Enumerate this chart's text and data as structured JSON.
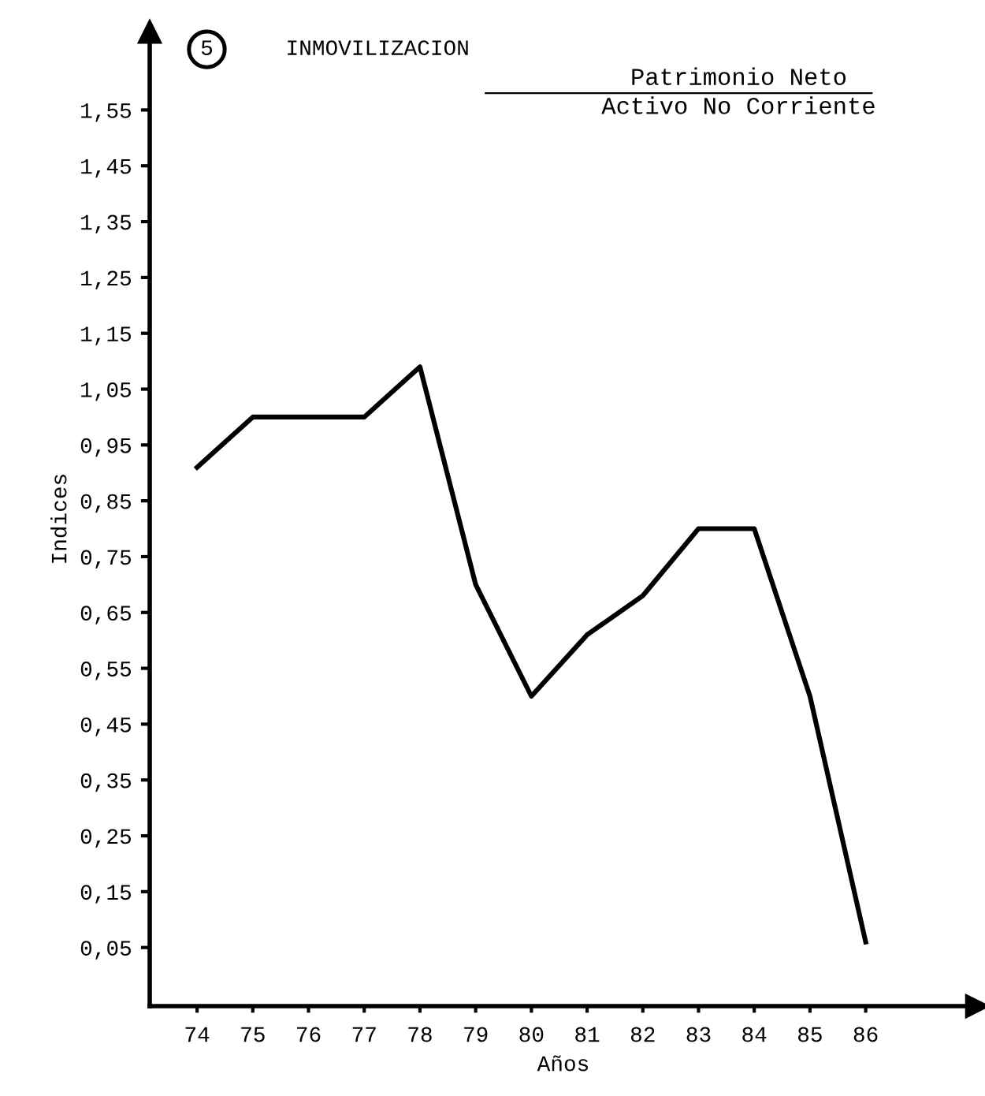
{
  "chart_data": {
    "type": "line",
    "title": "INMOVILIZACION",
    "xlabel": "Años",
    "ylabel": "Indices",
    "annotations": [
      "5",
      "Patrimonio Neto",
      "Activo No Corriente"
    ],
    "x": [
      74,
      75,
      76,
      77,
      78,
      79,
      80,
      81,
      82,
      83,
      84,
      85,
      86
    ],
    "series": [
      {
        "color": "#000000",
        "values": [
          0.91,
          1.0,
          1.0,
          1.0,
          1.09,
          0.7,
          0.5,
          0.61,
          0.68,
          0.8,
          0.8,
          0.5,
          0.06
        ]
      }
    ],
    "xlim": [
      73.15,
      88
    ],
    "ylim": [
      -0.055,
      1.69
    ],
    "xticks": [
      74,
      75,
      76,
      77,
      78,
      79,
      80,
      81,
      82,
      83,
      84,
      85,
      86
    ],
    "yticks": [
      {
        "value": 0.05,
        "label": "0,05"
      },
      {
        "value": 0.15,
        "label": "0,15"
      },
      {
        "value": 0.25,
        "label": "0,25"
      },
      {
        "value": 0.35,
        "label": "0,35"
      },
      {
        "value": 0.45,
        "label": "0,45"
      },
      {
        "value": 0.55,
        "label": "0,55"
      },
      {
        "value": 0.65,
        "label": "0,65"
      },
      {
        "value": 0.75,
        "label": "0,75"
      },
      {
        "value": 0.85,
        "label": "0,85"
      },
      {
        "value": 0.95,
        "label": "0,95"
      },
      {
        "value": 1.05,
        "label": "1,05"
      },
      {
        "value": 1.15,
        "label": "1,15"
      },
      {
        "value": 1.25,
        "label": "1,25"
      },
      {
        "value": 1.35,
        "label": "1,35"
      },
      {
        "value": 1.45,
        "label": "1,45"
      },
      {
        "value": 1.55,
        "label": "1,55"
      }
    ],
    "grid": false,
    "legend": false,
    "marker": "none",
    "line_style": "solid"
  }
}
